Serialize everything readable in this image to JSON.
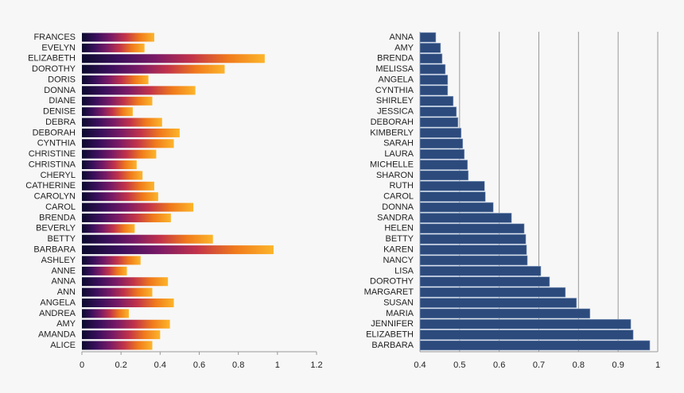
{
  "chart_data": [
    {
      "type": "gradient-bar",
      "categories": [
        "FRANCES",
        "EVELYN",
        "ELIZABETH",
        "DOROTHY",
        "DORIS",
        "DONNA",
        "DIANE",
        "DENISE",
        "DEBRA",
        "DEBORAH",
        "CYNTHIA",
        "CHRISTINE",
        "CHRISTINA",
        "CHERYL",
        "CATHERINE",
        "CAROLYN",
        "CAROL",
        "BRENDA",
        "BEVERLY",
        "BETTY",
        "BARBARA",
        "ASHLEY",
        "ANNE",
        "ANNA",
        "ANN",
        "ANGELA",
        "ANDREA",
        "AMY",
        "AMANDA",
        "ALICE"
      ],
      "values": [
        0.37,
        0.32,
        0.935,
        0.73,
        0.34,
        0.58,
        0.36,
        0.26,
        0.41,
        0.5,
        0.47,
        0.38,
        0.28,
        0.31,
        0.37,
        0.39,
        0.57,
        0.455,
        0.27,
        0.67,
        0.98,
        0.3,
        0.23,
        0.44,
        0.36,
        0.47,
        0.24,
        0.45,
        0.4,
        0.36
      ],
      "colors": [
        "#0b0b2e",
        "#3a0f5c",
        "#7a1a66",
        "#c2334a",
        "#f07a1c",
        "#fcb52a"
      ],
      "xlim": [
        0,
        1.2
      ],
      "xticks": [
        0,
        0.2,
        0.4,
        0.6,
        0.8,
        1,
        1.2
      ],
      "grid": false
    },
    {
      "type": "bar",
      "categories": [
        "ANNA",
        "AMY",
        "BRENDA",
        "MELISSA",
        "ANGELA",
        "CYNTHIA",
        "SHIRLEY",
        "JESSICA",
        "DEBORAH",
        "KIMBERLY",
        "SARAH",
        "LAURA",
        "MICHELLE",
        "SHARON",
        "RUTH",
        "CAROL",
        "DONNA",
        "SANDRA",
        "HELEN",
        "BETTY",
        "KAREN",
        "NANCY",
        "LISA",
        "DOROTHY",
        "MARGARET",
        "SUSAN",
        "MARIA",
        "JENNIFER",
        "ELIZABETH",
        "BARBARA"
      ],
      "values": [
        0.44,
        0.452,
        0.456,
        0.464,
        0.47,
        0.47,
        0.484,
        0.492,
        0.496,
        0.504,
        0.508,
        0.512,
        0.52,
        0.522,
        0.563,
        0.565,
        0.585,
        0.631,
        0.663,
        0.667,
        0.669,
        0.671,
        0.705,
        0.727,
        0.767,
        0.795,
        0.829,
        0.932,
        0.938,
        0.98
      ],
      "color": "#2c4a7c",
      "xlim": [
        0.4,
        1
      ],
      "xticks": [
        0.4,
        0.5,
        0.6,
        0.7,
        0.8,
        0.9,
        1
      ],
      "grid": true
    }
  ]
}
